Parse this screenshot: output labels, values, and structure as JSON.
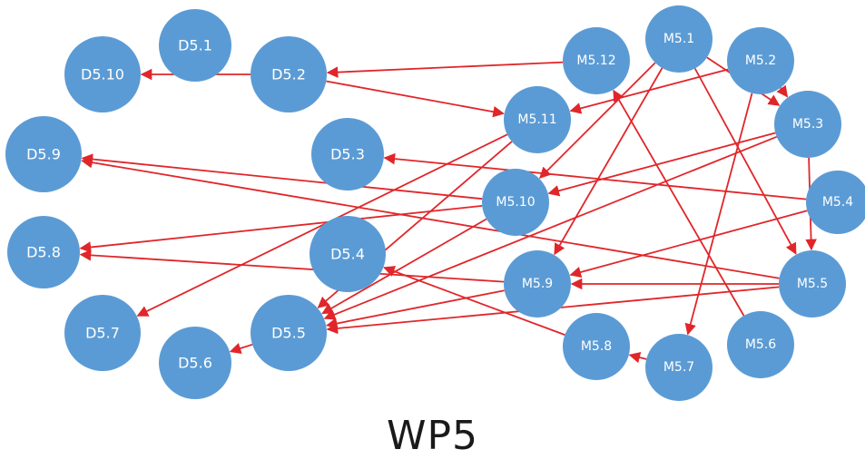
{
  "caption": "WP5",
  "colors": {
    "node_fill": "#5b9bd5",
    "edge": "#e0262a",
    "label": "#ffffff"
  },
  "nodes": [
    {
      "id": "D5.1",
      "label": "D5.1"
    },
    {
      "id": "D5.2",
      "label": "D5.2"
    },
    {
      "id": "D5.3",
      "label": "D5.3"
    },
    {
      "id": "D5.4",
      "label": "D5.4"
    },
    {
      "id": "D5.5",
      "label": "D5.5"
    },
    {
      "id": "D5.6",
      "label": "D5.6"
    },
    {
      "id": "D5.7",
      "label": "D5.7"
    },
    {
      "id": "D5.8",
      "label": "D5.8"
    },
    {
      "id": "D5.9",
      "label": "D5.9"
    },
    {
      "id": "D5.10",
      "label": "D5.10"
    },
    {
      "id": "M5.1",
      "label": "M5.1"
    },
    {
      "id": "M5.2",
      "label": "M5.2"
    },
    {
      "id": "M5.3",
      "label": "M5.3"
    },
    {
      "id": "M5.4",
      "label": "M5.4"
    },
    {
      "id": "M5.5",
      "label": "M5.5"
    },
    {
      "id": "M5.6",
      "label": "M5.6"
    },
    {
      "id": "M5.7",
      "label": "M5.7"
    },
    {
      "id": "M5.8",
      "label": "M5.8"
    },
    {
      "id": "M5.9",
      "label": "M5.9"
    },
    {
      "id": "M5.10",
      "label": "M5.10"
    },
    {
      "id": "M5.11",
      "label": "M5.11"
    },
    {
      "id": "M5.12",
      "label": "M5.12"
    }
  ],
  "edges": [
    {
      "from": "D5.2",
      "to": "D5.10"
    },
    {
      "from": "M5.12",
      "to": "D5.2"
    },
    {
      "from": "D5.2",
      "to": "M5.11"
    },
    {
      "from": "M5.2",
      "to": "M5.11"
    },
    {
      "from": "M5.1",
      "to": "M5.10"
    },
    {
      "from": "M5.1",
      "to": "M5.9"
    },
    {
      "from": "M5.1",
      "to": "M5.3"
    },
    {
      "from": "M5.1",
      "to": "M5.5"
    },
    {
      "from": "M5.2",
      "to": "M5.3"
    },
    {
      "from": "M5.2",
      "to": "M5.7"
    },
    {
      "from": "M5.3",
      "to": "M5.10"
    },
    {
      "from": "M5.3",
      "to": "M5.5"
    },
    {
      "from": "M5.3",
      "to": "D5.5"
    },
    {
      "from": "M5.4",
      "to": "D5.3"
    },
    {
      "from": "M5.4",
      "to": "M5.9"
    },
    {
      "from": "M5.5",
      "to": "D5.9"
    },
    {
      "from": "M5.5",
      "to": "M5.9"
    },
    {
      "from": "M5.5",
      "to": "D5.5"
    },
    {
      "from": "M5.6",
      "to": "M5.12"
    },
    {
      "from": "M5.7",
      "to": "M5.8"
    },
    {
      "from": "M5.8",
      "to": "D5.4"
    },
    {
      "from": "M5.9",
      "to": "D5.8"
    },
    {
      "from": "M5.9",
      "to": "D5.5"
    },
    {
      "from": "M5.10",
      "to": "D5.9"
    },
    {
      "from": "M5.10",
      "to": "D5.8"
    },
    {
      "from": "M5.10",
      "to": "D5.5"
    },
    {
      "from": "M5.11",
      "to": "D5.7"
    },
    {
      "from": "M5.11",
      "to": "D5.5"
    },
    {
      "from": "D5.5",
      "to": "D5.6"
    }
  ]
}
